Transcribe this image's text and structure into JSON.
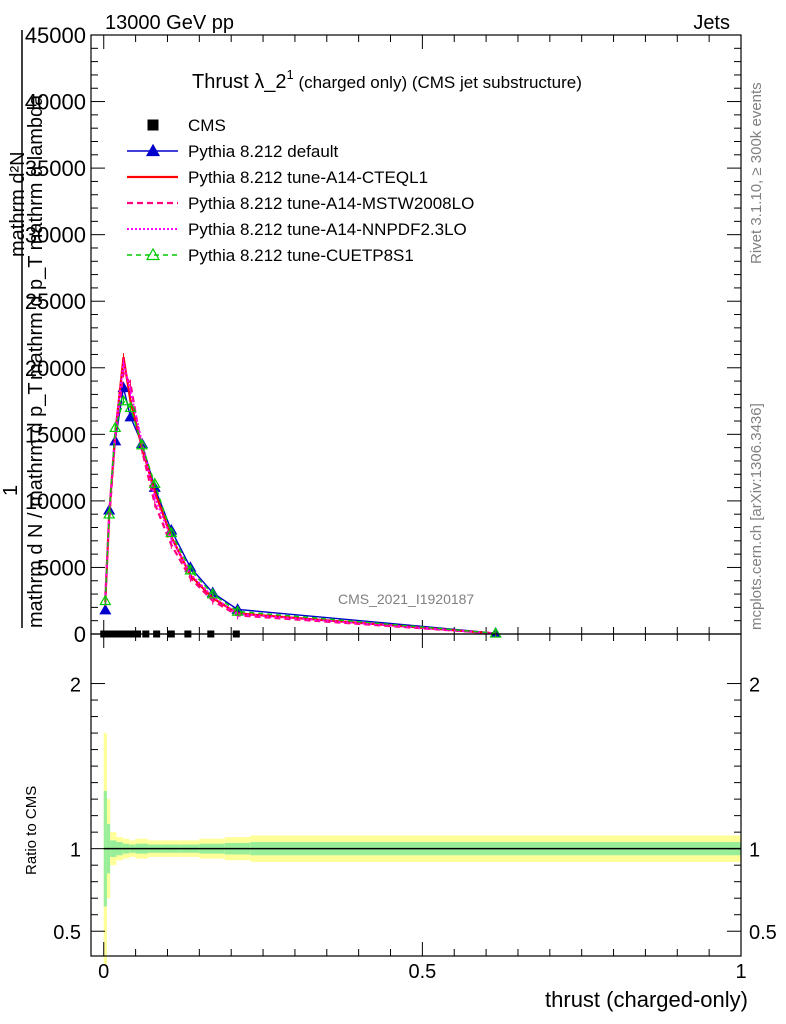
{
  "header": {
    "left": "13000 GeV pp",
    "right": "Jets"
  },
  "side": {
    "rivet": "Rivet 3.1.10, ≥ 300k events",
    "mcplots": "mcplots.cern.ch [arXiv:1306.3436]"
  },
  "colors": {
    "cms": "#000000",
    "default": "#0000cc",
    "cteql1": "#ff0000",
    "mstw": "#ff0080",
    "nnpdf": "#ff00ff",
    "cuetp8s1": "#00cc00",
    "band_yellow": "#ffff99",
    "band_green": "#99ee99"
  },
  "chart_data": {
    "type": "line",
    "title_main": "Thrust λ_2",
    "title_sup": "1",
    "title_rest": " (charged only) (CMS jet substructure)",
    "watermark": "CMS_2021_I1920187",
    "ylabel_upper_top": "mathrm d²N",
    "ylabel_upper_bottom": "mathrm d p_T mathrm d lambda",
    "ylabel_lower_top": "1",
    "ylabel_lower_bottom": "mathrm d N / mathrm d p_T",
    "ylabel_ratio": "Ratio to CMS",
    "xlabel": "thrust (charged-only)",
    "xlim": [
      -0.02,
      1.0
    ],
    "ylim": [
      0,
      45000
    ],
    "ratio_ylim": [
      0.35,
      2.3
    ],
    "x_ticks": [
      0,
      0.5,
      1
    ],
    "x_tick_labels": [
      "0",
      "0.5",
      "1"
    ],
    "y_ticks": [
      0,
      5000,
      10000,
      15000,
      20000,
      25000,
      30000,
      35000,
      40000,
      45000
    ],
    "y_tick_labels": [
      "0",
      "5000",
      "10000",
      "15000",
      "20000",
      "25000",
      "30000",
      "35000",
      "40000",
      "45000"
    ],
    "ratio_ticks": [
      0.5,
      1,
      2
    ],
    "ratio_tick_labels": [
      "0.5",
      "1",
      "2"
    ],
    "x": [
      0.0025,
      0.0085,
      0.018,
      0.031,
      0.042,
      0.06,
      0.08,
      0.106,
      0.136,
      0.171,
      0.21,
      0.615
    ],
    "cms_x": [
      0.0,
      0.0025,
      0.006,
      0.01,
      0.015,
      0.02,
      0.026,
      0.033,
      0.042,
      0.053,
      0.066,
      0.083,
      0.106,
      0.132,
      0.168,
      0.208
    ],
    "legend": [
      "CMS",
      "Pythia 8.212 default",
      "Pythia 8.212 tune-A14-CTEQL1",
      "Pythia 8.212 tune-A14-MSTW2008LO",
      "Pythia 8.212 tune-A14-NNPDF2.3LO",
      "Pythia 8.212 tune-CUETP8S1"
    ],
    "series": [
      {
        "name": "Pythia 8.212 default",
        "values": [
          1800,
          9300,
          14500,
          18500,
          16300,
          14300,
          11000,
          7800,
          5000,
          3100,
          1850,
          60
        ]
      },
      {
        "name": "Pythia 8.212 tune-A14-CTEQL1",
        "values": [
          2400,
          9000,
          15000,
          20800,
          17500,
          14000,
          10700,
          7300,
          4400,
          2700,
          1550,
          40
        ]
      },
      {
        "name": "Pythia 8.212 tune-A14-MSTW2008LO",
        "values": [
          2800,
          8600,
          14800,
          19600,
          18800,
          13800,
          9800,
          6700,
          4200,
          2500,
          1400,
          40
        ]
      },
      {
        "name": "Pythia 8.212 tune-A14-NNPDF2.3LO",
        "values": [
          2600,
          9200,
          15200,
          20400,
          18200,
          14400,
          10300,
          7200,
          4500,
          2800,
          1500,
          40
        ]
      },
      {
        "name": "Pythia 8.212 tune-CUETP8S1",
        "values": [
          2500,
          9000,
          15500,
          17500,
          17000,
          14200,
          11300,
          7600,
          4800,
          3000,
          1700,
          50
        ]
      }
    ],
    "ratio_band": {
      "x_edges": [
        0,
        0.005,
        0.01,
        0.02,
        0.03,
        0.04,
        0.05,
        0.07,
        0.09,
        0.12,
        0.15,
        0.19,
        0.23,
        1.0
      ],
      "yellow_half": [
        0.7,
        0.3,
        0.1,
        0.07,
        0.06,
        0.05,
        0.06,
        0.05,
        0.05,
        0.05,
        0.06,
        0.07,
        0.08
      ],
      "green_half": [
        0.35,
        0.15,
        0.05,
        0.04,
        0.03,
        0.025,
        0.03,
        0.025,
        0.025,
        0.025,
        0.03,
        0.035,
        0.04
      ]
    }
  }
}
